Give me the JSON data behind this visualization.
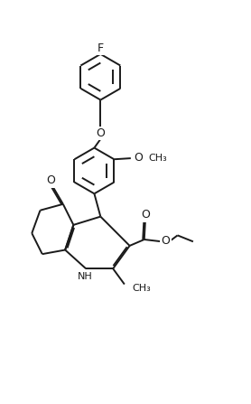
{
  "bg": "#ffffff",
  "lc": "#1a1a1a",
  "lw": 1.4,
  "fs": 8.0,
  "figsize": [
    2.78,
    4.47
  ],
  "dpi": 100,
  "xlim": [
    -1,
    11
  ],
  "ylim": [
    0,
    18
  ]
}
